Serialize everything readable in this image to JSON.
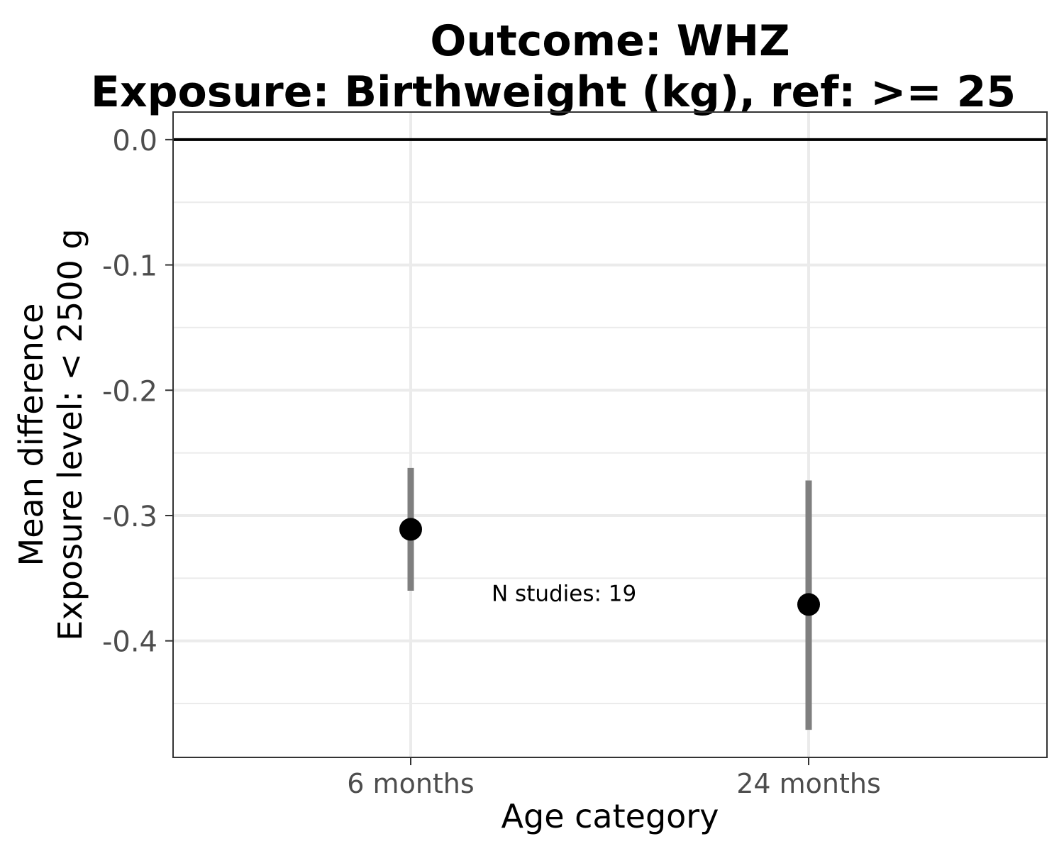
{
  "chart_data": {
    "type": "scatter",
    "title_lines": [
      "Outcome: WHZ",
      "Exposure: Birthweight (kg), ref: >= 25"
    ],
    "xlabel": "Age category",
    "ylabel_lines": [
      "Mean difference",
      "Exposure level: < 2500 g"
    ],
    "categories": [
      "6 months",
      "24 months"
    ],
    "points": [
      {
        "category": "6 months",
        "estimate": -0.311,
        "ci_lower": -0.36,
        "ci_upper": -0.262
      },
      {
        "category": "24 months",
        "estimate": -0.371,
        "ci_lower": -0.471,
        "ci_upper": -0.272
      }
    ],
    "reference_line": 0.0,
    "yticks": [
      "0.0",
      "-0.1",
      "-0.2",
      "-0.3",
      "-0.4"
    ],
    "ytick_values": [
      0.0,
      -0.1,
      -0.2,
      -0.3,
      -0.4
    ],
    "ylim": [
      -0.493,
      0.022
    ],
    "annotation": {
      "text": "N studies: 19",
      "x_between": [
        "6 months",
        "24 months"
      ],
      "y": -0.362
    },
    "grid": true,
    "legend": "none",
    "colors": {
      "point": "#000000",
      "errorbar": "#7f7f7f",
      "reference": "#000000",
      "grid": "#ebebeb",
      "border": "#333333"
    }
  }
}
